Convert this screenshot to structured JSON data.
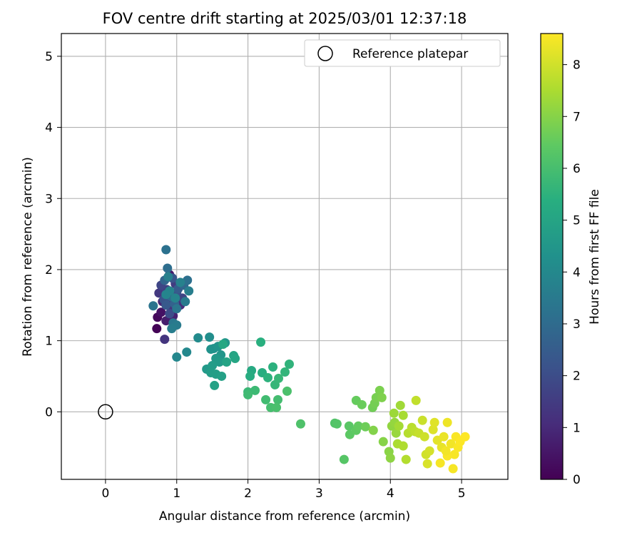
{
  "chart_data": {
    "type": "scatter",
    "title": "FOV centre drift starting at 2025/03/01 12:37:18",
    "xlabel": "Angular distance from reference (arcmin)",
    "ylabel": "Rotation from reference (arcmin)",
    "xlim": [
      -0.62,
      5.65
    ],
    "ylim": [
      -0.95,
      5.32
    ],
    "xticks": [
      0,
      1,
      2,
      3,
      4,
      5
    ],
    "yticks": [
      0,
      1,
      2,
      3,
      4,
      5
    ],
    "grid": true,
    "legend": {
      "position": "top-right",
      "entries": [
        "Reference platepar"
      ]
    },
    "colorbar": {
      "label": "Hours from first FF file",
      "range": [
        0,
        8.6
      ],
      "ticks": [
        0,
        1,
        2,
        3,
        4,
        5,
        6,
        7,
        8
      ],
      "colormap": "viridis"
    },
    "reference": {
      "name": "Reference platepar",
      "x": 0,
      "y": 0
    },
    "points": [
      [
        0.72,
        1.17,
        0.05
      ],
      [
        0.73,
        1.33,
        0.2
      ],
      [
        0.78,
        1.4,
        0.4
      ],
      [
        0.9,
        1.93,
        0.6
      ],
      [
        0.85,
        1.28,
        0.7
      ],
      [
        0.95,
        1.35,
        0.8
      ],
      [
        0.8,
        1.55,
        0.9
      ],
      [
        0.88,
        1.62,
        1.0
      ],
      [
        1.05,
        1.5,
        1.1
      ],
      [
        0.92,
        1.45,
        1.2
      ],
      [
        0.83,
        1.02,
        1.3
      ],
      [
        0.75,
        1.67,
        1.4
      ],
      [
        0.98,
        1.8,
        1.5
      ],
      [
        0.86,
        1.72,
        1.6
      ],
      [
        1.08,
        1.6,
        1.7
      ],
      [
        0.78,
        1.78,
        1.8
      ],
      [
        0.95,
        1.55,
        1.9
      ],
      [
        0.9,
        1.38,
        2.0
      ],
      [
        1.0,
        1.68,
        2.1
      ],
      [
        0.82,
        1.58,
        2.2
      ],
      [
        0.94,
        1.88,
        2.3
      ],
      [
        0.85,
        1.5,
        2.4
      ],
      [
        1.02,
        1.73,
        2.5
      ],
      [
        0.88,
        1.66,
        2.6
      ],
      [
        0.97,
        1.52,
        2.7
      ],
      [
        0.83,
        1.85,
        2.8
      ],
      [
        1.1,
        1.78,
        2.9
      ],
      [
        0.92,
        1.62,
        3.0
      ],
      [
        0.87,
        2.02,
        3.1
      ],
      [
        1.15,
        1.85,
        3.15
      ],
      [
        0.85,
        2.28,
        3.2
      ],
      [
        0.67,
        1.49,
        3.3
      ],
      [
        1.0,
        1.45,
        3.35
      ],
      [
        0.95,
        1.25,
        3.4
      ],
      [
        1.12,
        1.55,
        3.5
      ],
      [
        1.0,
        1.22,
        3.55
      ],
      [
        0.93,
        1.17,
        3.6
      ],
      [
        1.17,
        1.7,
        3.65
      ],
      [
        0.88,
        1.9,
        3.7
      ],
      [
        1.05,
        1.82,
        3.75
      ],
      [
        0.9,
        1.7,
        3.8
      ],
      [
        0.98,
        1.6,
        3.85
      ],
      [
        0.85,
        1.65,
        3.9
      ],
      [
        1.0,
        0.77,
        3.95
      ],
      [
        1.14,
        0.84,
        4.0
      ],
      [
        1.3,
        1.04,
        4.1
      ],
      [
        1.46,
        1.05,
        4.2
      ],
      [
        1.52,
        0.89,
        4.3
      ],
      [
        1.48,
        0.88,
        4.35
      ],
      [
        1.58,
        0.92,
        4.4
      ],
      [
        1.62,
        0.8,
        4.45
      ],
      [
        1.68,
        0.97,
        4.5
      ],
      [
        1.55,
        0.75,
        4.55
      ],
      [
        1.42,
        0.6,
        4.6
      ],
      [
        1.6,
        0.7,
        4.65
      ],
      [
        1.5,
        0.65,
        4.7
      ],
      [
        1.48,
        0.55,
        4.75
      ],
      [
        1.55,
        0.53,
        4.8
      ],
      [
        1.63,
        0.5,
        4.85
      ],
      [
        1.53,
        0.37,
        4.9
      ],
      [
        1.7,
        0.7,
        4.95
      ],
      [
        1.8,
        0.79,
        5.0
      ],
      [
        1.82,
        0.75,
        5.05
      ],
      [
        1.65,
        0.95,
        5.1
      ],
      [
        2.05,
        0.58,
        5.2
      ],
      [
        2.03,
        0.5,
        5.3
      ],
      [
        2.2,
        0.55,
        5.35
      ],
      [
        2.18,
        0.98,
        5.4
      ],
      [
        2.35,
        0.63,
        5.45
      ],
      [
        2.28,
        0.48,
        5.5
      ],
      [
        2.58,
        0.67,
        5.55
      ],
      [
        2.52,
        0.56,
        5.6
      ],
      [
        2.38,
        0.38,
        5.65
      ],
      [
        2.43,
        0.47,
        5.7
      ],
      [
        2.0,
        0.28,
        5.75
      ],
      [
        2.1,
        0.3,
        5.8
      ],
      [
        2.0,
        0.24,
        5.85
      ],
      [
        2.25,
        0.17,
        5.9
      ],
      [
        2.42,
        0.17,
        5.95
      ],
      [
        2.32,
        0.06,
        6.0
      ],
      [
        2.4,
        0.06,
        6.05
      ],
      [
        2.55,
        0.29,
        6.1
      ],
      [
        2.74,
        -0.17,
        6.15
      ],
      [
        3.22,
        -0.16,
        6.2
      ],
      [
        3.25,
        -0.17,
        6.25
      ],
      [
        3.35,
        -0.67,
        6.3
      ],
      [
        3.42,
        -0.2,
        6.35
      ],
      [
        3.43,
        -0.32,
        6.4
      ],
      [
        3.52,
        -0.26,
        6.45
      ],
      [
        3.55,
        -0.2,
        6.5
      ],
      [
        3.52,
        0.16,
        6.55
      ],
      [
        3.6,
        0.1,
        6.6
      ],
      [
        3.65,
        -0.21,
        6.65
      ],
      [
        3.75,
        0.06,
        6.7
      ],
      [
        3.78,
        0.12,
        6.75
      ],
      [
        3.8,
        0.2,
        6.8
      ],
      [
        3.85,
        0.3,
        6.85
      ],
      [
        3.88,
        0.2,
        6.9
      ],
      [
        3.76,
        -0.26,
        6.95
      ],
      [
        3.9,
        -0.42,
        7.0
      ],
      [
        3.98,
        -0.56,
        7.05
      ],
      [
        4.0,
        -0.65,
        7.1
      ],
      [
        4.02,
        -0.2,
        7.15
      ],
      [
        4.06,
        -0.15,
        7.2
      ],
      [
        4.08,
        -0.3,
        7.25
      ],
      [
        4.05,
        -0.02,
        7.3
      ],
      [
        4.14,
        0.09,
        7.35
      ],
      [
        4.12,
        -0.2,
        7.4
      ],
      [
        4.18,
        -0.05,
        7.45
      ],
      [
        4.1,
        -0.45,
        7.5
      ],
      [
        4.18,
        -0.48,
        7.55
      ],
      [
        4.22,
        -0.67,
        7.6
      ],
      [
        4.25,
        -0.3,
        7.65
      ],
      [
        4.3,
        -0.22,
        7.7
      ],
      [
        4.35,
        -0.28,
        7.75
      ],
      [
        4.36,
        0.16,
        7.8
      ],
      [
        4.4,
        -0.3,
        7.85
      ],
      [
        4.45,
        -0.12,
        7.9
      ],
      [
        4.48,
        -0.35,
        7.95
      ],
      [
        4.5,
        -0.6,
        8.0
      ],
      [
        4.55,
        -0.55,
        8.05
      ],
      [
        4.52,
        -0.73,
        8.1
      ],
      [
        4.6,
        -0.25,
        8.15
      ],
      [
        4.62,
        -0.15,
        8.2
      ],
      [
        4.66,
        -0.4,
        8.25
      ],
      [
        4.72,
        -0.5,
        8.3
      ],
      [
        4.75,
        -0.35,
        8.35
      ],
      [
        4.8,
        -0.15,
        8.4
      ],
      [
        4.85,
        -0.45,
        8.45
      ],
      [
        4.88,
        -0.8,
        8.5
      ],
      [
        4.9,
        -0.6,
        8.52
      ],
      [
        4.92,
        -0.35,
        8.54
      ],
      [
        4.95,
        -0.5,
        8.56
      ],
      [
        4.98,
        -0.42,
        8.58
      ],
      [
        5.05,
        -0.35,
        8.6
      ],
      [
        4.8,
        -0.62,
        8.55
      ],
      [
        4.7,
        -0.72,
        8.5
      ],
      [
        4.78,
        -0.55,
        8.45
      ]
    ]
  }
}
